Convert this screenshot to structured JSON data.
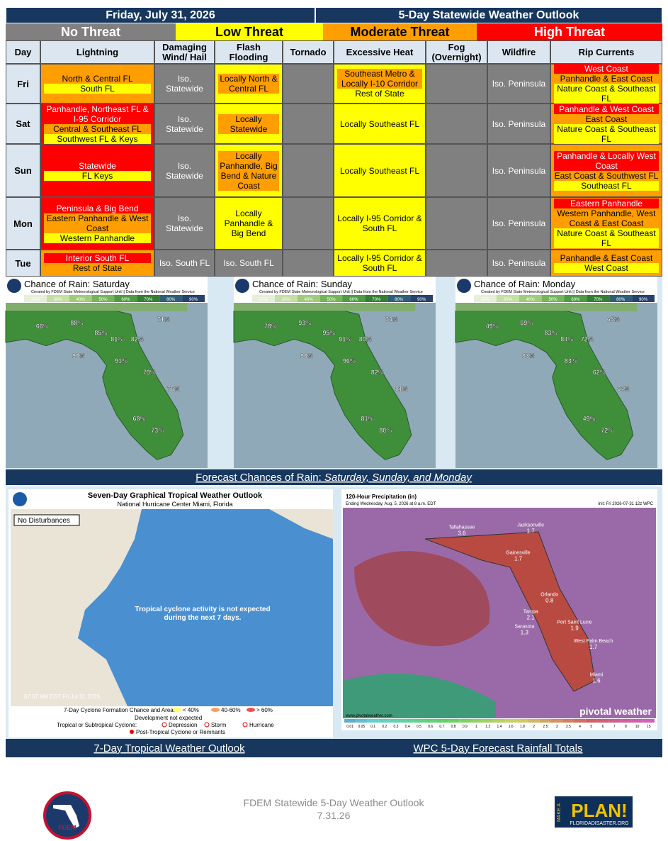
{
  "header": {
    "date": "Friday, July 31, 2026",
    "title": "5-Day Statewide Weather Outlook"
  },
  "threat_legend": [
    {
      "label": "No Threat",
      "color": "#808080",
      "text_color": "#ffffff"
    },
    {
      "label": "Low Threat",
      "color": "#ffff00",
      "text_color": "#000000"
    },
    {
      "label": "Moderate Threat",
      "color": "#ff9e00",
      "text_color": "#000000"
    },
    {
      "label": "High Threat",
      "color": "#ff0000",
      "text_color": "#ffffff"
    }
  ],
  "table": {
    "columns": [
      "Day",
      "Lightning",
      "Damaging Wind/ Hail",
      "Flash Flooding",
      "Tornado",
      "Excessive Heat",
      "Fog (Overnight)",
      "Wildfire",
      "Rip Currents"
    ],
    "rows": [
      {
        "day": "Fri",
        "cells": [
          {
            "bg": "#ff9e00",
            "items": [
              {
                "text": "North & Central FL",
                "bg": "#ff9e00"
              },
              {
                "text": "South FL",
                "bg": "#ffff00"
              }
            ]
          },
          {
            "bg": "#808080",
            "items": [
              {
                "text": "Iso. Statewide",
                "bg": "#808080"
              }
            ]
          },
          {
            "bg": "#ffff00",
            "items": [
              {
                "text": "Locally North & Central FL",
                "bg": "#ff9e00"
              }
            ]
          },
          {
            "bg": "#808080",
            "items": []
          },
          {
            "bg": "#ffff00",
            "items": [
              {
                "text": "Southeast Metro & Locally I-10 Corridor",
                "bg": "#ff9e00"
              },
              {
                "text": "Rest of State",
                "bg": "#ffff00"
              }
            ]
          },
          {
            "bg": "#808080",
            "items": []
          },
          {
            "bg": "#808080",
            "items": [
              {
                "text": "Iso. Peninsula",
                "bg": "#808080"
              }
            ]
          },
          {
            "bg": "#ff9e00",
            "items": [
              {
                "text": "West Coast",
                "bg": "#ff0000"
              },
              {
                "text": "Panhandle & East Coast",
                "bg": "#ff9e00"
              },
              {
                "text": "Nature Coast & Southeast FL",
                "bg": "#ffff00"
              }
            ]
          }
        ]
      },
      {
        "day": "Sat",
        "cells": [
          {
            "bg": "#ff0000",
            "items": [
              {
                "text": "Panhandle, Northeast FL & I-95 Corridor",
                "bg": "#ff0000"
              },
              {
                "text": "Central & Southeast FL",
                "bg": "#ff9e00"
              },
              {
                "text": "Southwest FL & Keys",
                "bg": "#ffff00"
              }
            ]
          },
          {
            "bg": "#808080",
            "items": [
              {
                "text": "Iso. Statewide",
                "bg": "#808080"
              }
            ]
          },
          {
            "bg": "#ffff00",
            "items": [
              {
                "text": "Locally Statewide",
                "bg": "#ff9e00"
              }
            ]
          },
          {
            "bg": "#808080",
            "items": []
          },
          {
            "bg": "#ffff00",
            "items": [
              {
                "text": "Locally Southeast FL",
                "bg": "#ffff00"
              }
            ]
          },
          {
            "bg": "#808080",
            "items": []
          },
          {
            "bg": "#808080",
            "items": [
              {
                "text": "Iso. Peninsula",
                "bg": "#808080"
              }
            ]
          },
          {
            "bg": "#ff9e00",
            "items": [
              {
                "text": "Panhandle & West Coast",
                "bg": "#ff0000"
              },
              {
                "text": "East Coast",
                "bg": "#ff9e00"
              },
              {
                "text": "Nature Coast & Southeast FL",
                "bg": "#ffff00"
              }
            ]
          }
        ]
      },
      {
        "day": "Sun",
        "cells": [
          {
            "bg": "#ff0000",
            "items": [
              {
                "text": "Statewide",
                "bg": "#ff0000"
              },
              {
                "text": "FL Keys",
                "bg": "#ffff00"
              }
            ]
          },
          {
            "bg": "#808080",
            "items": [
              {
                "text": "Iso. Statewide",
                "bg": "#808080"
              }
            ]
          },
          {
            "bg": "#ffff00",
            "items": [
              {
                "text": "Locally Panhandle, Big Bend & Nature Coast",
                "bg": "#ff9e00"
              }
            ]
          },
          {
            "bg": "#808080",
            "items": []
          },
          {
            "bg": "#ffff00",
            "items": [
              {
                "text": "Locally Southeast FL",
                "bg": "#ffff00"
              }
            ]
          },
          {
            "bg": "#808080",
            "items": []
          },
          {
            "bg": "#808080",
            "items": [
              {
                "text": "Iso. Peninsula",
                "bg": "#808080"
              }
            ]
          },
          {
            "bg": "#ff9e00",
            "items": [
              {
                "text": "Panhandle & Locally West Coast",
                "bg": "#ff0000"
              },
              {
                "text": "East Coast & Southwest FL",
                "bg": "#ff9e00"
              },
              {
                "text": "Southeast FL",
                "bg": "#ffff00"
              }
            ]
          }
        ]
      },
      {
        "day": "Mon",
        "cells": [
          {
            "bg": "#ff0000",
            "items": [
              {
                "text": "Peninsula & Big Bend",
                "bg": "#ff0000"
              },
              {
                "text": "Eastern Panhandle & West Coast",
                "bg": "#ff9e00"
              },
              {
                "text": "Western Panhandle",
                "bg": "#ffff00"
              }
            ]
          },
          {
            "bg": "#808080",
            "items": [
              {
                "text": "Iso. Statewide",
                "bg": "#808080"
              }
            ]
          },
          {
            "bg": "#ffff00",
            "items": [
              {
                "text": "Locally Panhandle & Big Bend",
                "bg": "#ffff00"
              }
            ]
          },
          {
            "bg": "#808080",
            "items": []
          },
          {
            "bg": "#ffff00",
            "items": [
              {
                "text": "Locally I-95 Corridor & South FL",
                "bg": "#ffff00"
              }
            ]
          },
          {
            "bg": "#808080",
            "items": []
          },
          {
            "bg": "#808080",
            "items": [
              {
                "text": "Iso. Peninsula",
                "bg": "#808080"
              }
            ]
          },
          {
            "bg": "#ff9e00",
            "items": [
              {
                "text": "Eastern Panhandle",
                "bg": "#ff0000"
              },
              {
                "text": "Western Panhandle, West Coast & East Coast",
                "bg": "#ff9e00"
              },
              {
                "text": "Nature Coast & Southeast FL",
                "bg": "#ffff00"
              }
            ]
          }
        ]
      },
      {
        "day": "Tue",
        "cells": [
          {
            "bg": "#ff9e00",
            "items": [
              {
                "text": "Interior South FL",
                "bg": "#ff0000"
              },
              {
                "text": "Rest of State",
                "bg": "#ff9e00"
              }
            ]
          },
          {
            "bg": "#808080",
            "items": [
              {
                "text": "Iso. South FL",
                "bg": "#808080"
              }
            ]
          },
          {
            "bg": "#808080",
            "items": [
              {
                "text": "Iso. South FL",
                "bg": "#808080"
              }
            ]
          },
          {
            "bg": "#808080",
            "items": []
          },
          {
            "bg": "#ffff00",
            "items": [
              {
                "text": "Locally I-95 Corridor & South FL",
                "bg": "#ffff00"
              }
            ]
          },
          {
            "bg": "#808080",
            "items": []
          },
          {
            "bg": "#808080",
            "items": [
              {
                "text": "Iso. Peninsula",
                "bg": "#808080"
              }
            ]
          },
          {
            "bg": "#ff9e00",
            "items": [
              {
                "text": "Panhandle & East Coast",
                "bg": "#ff9e00"
              },
              {
                "text": "West Coast",
                "bg": "#ffff00"
              }
            ]
          }
        ]
      }
    ]
  },
  "rain_maps": {
    "credit": "Created by FDEM State Meteorological Support Unit || Data from the National Weather Service",
    "scale": [
      "20%",
      "30%",
      "40%",
      "50%",
      "60%",
      "70%",
      "80%",
      "90%"
    ],
    "panels": [
      {
        "title": "Chance of Rain: Saturday",
        "labels": [
          "66%",
          "88%",
          "85%",
          "81%",
          "82%",
          "71%",
          "90%",
          "91%",
          "79%",
          "76%",
          "68%",
          "73%"
        ]
      },
      {
        "title": "Chance of Rain: Sunday",
        "labels": [
          "78%",
          "93%",
          "95%",
          "91%",
          "80%",
          "73%",
          "90%",
          "96%",
          "82%",
          "81%",
          "81%",
          "80%"
        ]
      },
      {
        "title": "Chance of Rain: Monday",
        "labels": [
          "49%",
          "69%",
          "83%",
          "84%",
          "72%",
          "65%",
          "83%",
          "83%",
          "62%",
          "64%",
          "49%",
          "72%"
        ]
      }
    ],
    "caption_prefix": "Forecast Chances of Rain:",
    "caption_days": "Saturday, Sunday, and Monday"
  },
  "tropical": {
    "title": "Seven-Day Graphical Tropical Weather Outlook",
    "subtitle": "National Hurricane Center  Miami, Florida",
    "badge": "No Disturbances",
    "message": "Tropical cyclone activity is not expected during the next 7 days.",
    "timestamp": "07:07 AM EDT Fri Jul 31 2026",
    "legend_title": "7-Day Cyclone Formation Chance and Area:",
    "chances": [
      "< 40%",
      "40-60%",
      "> 60%"
    ],
    "no_development": "Development not expected",
    "cyclone_title": "Tropical or Subtropical Cyclone:",
    "cyclone_types": [
      "Depression",
      "Storm",
      "Hurricane"
    ],
    "post_tropical": "Post-Tropical Cyclone or Remnants",
    "caption": "7-Day Tropical Weather Outlook"
  },
  "rainfall": {
    "title": "120-Hour Precipitation (in)",
    "subtitle": "Ending Wednesday, Aug. 5, 2026 at 8 a.m. EDT",
    "init": "Init: Fri 2026-07-31 12z WPC",
    "brand": "pivotal weather",
    "url": "www.pivotalweather.com",
    "cities": [
      {
        "name": "Tallahassee",
        "value": 3.6
      },
      {
        "name": "Jacksonville",
        "value": 1.7
      },
      {
        "name": "Gainesville",
        "value": 1.7
      },
      {
        "name": "Orlando",
        "value": 0.8
      },
      {
        "name": "Tampa",
        "value": 2.1
      },
      {
        "name": "Sarasota",
        "value": 1.3
      },
      {
        "name": "Port Saint Lucie",
        "value": 1.9
      },
      {
        "name": "West Palm Beach",
        "value": 1.7
      },
      {
        "name": "Miami",
        "value": 1.6
      }
    ],
    "scale": [
      0.01,
      0.05,
      0.1,
      0.2,
      0.3,
      0.4,
      0.5,
      0.6,
      0.7,
      0.8,
      0.9,
      1,
      1.2,
      1.4,
      1.6,
      1.8,
      2,
      2.5,
      3,
      3.5,
      4,
      5,
      6,
      7,
      8,
      10,
      15
    ],
    "caption": "WPC 5-Day Forecast Rainfall Totals"
  },
  "footer": {
    "title": "FDEM Statewide 5-Day Weather Outlook",
    "date": "7.31.26",
    "fdem_logo": "FDEM",
    "plan_make": "MAKE A",
    "plan_logo": "PLAN!",
    "plan_site": "FLORIDADISASTER.ORG"
  }
}
